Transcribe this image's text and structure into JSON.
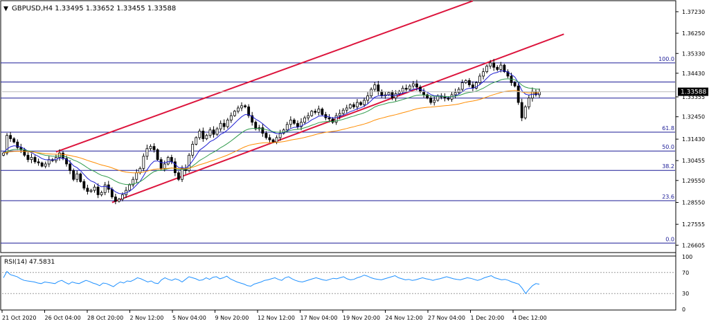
{
  "header": {
    "symbol_line": "GBPUSD,H4  1.33495 1.33652 1.33455 1.33588",
    "collapse_glyph": "▼"
  },
  "colors": {
    "bull_candle": "#ffffff",
    "bear_candle": "#000000",
    "candle_outline": "#000000",
    "ma_fast": "#1e1ed2",
    "ma_mid": "#2e9a4a",
    "ma_slow": "#ff8c00",
    "channel": "#dc143c",
    "fib_line": "#1a1a96",
    "rsi_line": "#1e90ff",
    "rsi_level": "#9a9a9a",
    "price_tag_bg": "#000000",
    "price_tag_fg": "#ffffff"
  },
  "chart_data": [
    {
      "type": "candlestick",
      "symbol": "GBPUSD",
      "timeframe": "H4",
      "ohlc_current": {
        "open": 1.33495,
        "high": 1.33652,
        "low": 1.33455,
        "close": 1.33588
      },
      "last_price_label": "1.33588",
      "ylim": [
        1.263,
        1.377
      ],
      "y_ticks": [
        "1.37230",
        "1.36250",
        "1.35330",
        "1.34430",
        "1.33355",
        "1.32450",
        "1.31430",
        "1.30455",
        "1.29550",
        "1.28550",
        "1.27555",
        "1.26605"
      ],
      "y_tick_values": [
        1.3723,
        1.3625,
        1.3533,
        1.3443,
        1.33355,
        1.3245,
        1.3143,
        1.30455,
        1.2955,
        1.2855,
        1.27555,
        1.26605
      ],
      "x_ticks": [
        "21 Oct 2020",
        "26 Oct 04:00",
        "28 Oct 20:00",
        "2 Nov 12:00",
        "5 Nov 04:00",
        "9 Nov 20:00",
        "12 Nov 12:00",
        "17 Nov 04:00",
        "19 Nov 20:00",
        "24 Nov 12:00",
        "27 Nov 04:00",
        "1 Dec 20:00",
        "4 Dec 12:00"
      ],
      "closes": [
        1.308,
        1.316,
        1.3145,
        1.313,
        1.3105,
        1.3095,
        1.307,
        1.305,
        1.306,
        1.304,
        1.3035,
        1.302,
        1.303,
        1.305,
        1.3045,
        1.306,
        1.308,
        1.3055,
        1.303,
        1.3,
        1.296,
        1.2985,
        1.295,
        1.292,
        1.2905,
        1.291,
        1.2925,
        1.289,
        1.29,
        1.2935,
        1.2915,
        1.288,
        1.286,
        1.287,
        1.289,
        1.291,
        1.2935,
        1.296,
        1.299,
        1.301,
        1.3065,
        1.31,
        1.311,
        1.3095,
        1.305,
        1.301,
        1.303,
        1.306,
        1.304,
        1.299,
        1.296,
        1.301,
        1.3,
        1.307,
        1.312,
        1.315,
        1.318,
        1.3145,
        1.316,
        1.3185,
        1.3165,
        1.319,
        1.3215,
        1.32,
        1.323,
        1.325,
        1.327,
        1.3285,
        1.3295,
        1.329,
        1.325,
        1.322,
        1.319,
        1.3195,
        1.317,
        1.315,
        1.314,
        1.313,
        1.315,
        1.317,
        1.3185,
        1.321,
        1.323,
        1.3215,
        1.32,
        1.322,
        1.324,
        1.325,
        1.327,
        1.3265,
        1.328,
        1.3255,
        1.324,
        1.3235,
        1.322,
        1.325,
        1.326,
        1.3275,
        1.3285,
        1.33,
        1.329,
        1.331,
        1.33,
        1.332,
        1.334,
        1.337,
        1.339,
        1.336,
        1.334,
        1.3345,
        1.3355,
        1.333,
        1.335,
        1.336,
        1.3375,
        1.337,
        1.3385,
        1.3395,
        1.338,
        1.336,
        1.3345,
        1.333,
        1.331,
        1.332,
        1.334,
        1.3335,
        1.333,
        1.3325,
        1.3345,
        1.3355,
        1.337,
        1.34,
        1.341,
        1.339,
        1.3375,
        1.34,
        1.343,
        1.345,
        1.3475,
        1.349,
        1.347,
        1.346,
        1.348,
        1.345,
        1.343,
        1.34,
        1.3385,
        1.331,
        1.324,
        1.329,
        1.333,
        1.336,
        1.3345,
        1.33588
      ],
      "channel": {
        "lower": [
          {
            "bar": 31,
            "price": 1.2855
          },
          {
            "bar": 160,
            "price": 1.3621
          }
        ],
        "upper": [
          {
            "bar": 15,
            "price": 1.3085
          },
          {
            "bar": 134,
            "price": 1.3772
          }
        ]
      },
      "fib_levels": [
        {
          "label": "100.0",
          "price": 1.349
        },
        {
          "label": "",
          "price": 1.3403
        },
        {
          "label": "",
          "price": 1.333
        },
        {
          "label": "61.8",
          "price": 1.3175
        },
        {
          "label": "50.0",
          "price": 1.3089
        },
        {
          "label": "38.2",
          "price": 1.3001
        },
        {
          "label": "23.6",
          "price": 1.2863
        },
        {
          "label": "0.0",
          "price": 1.267
        }
      ]
    },
    {
      "type": "line",
      "indicator_label": "RSI(14) 47.5831",
      "ylim": [
        0,
        100
      ],
      "y_ticks": [
        "100",
        "70",
        "30",
        "0"
      ],
      "y_tick_values": [
        100,
        70,
        30,
        0
      ],
      "levels": [
        70,
        30
      ],
      "values": [
        60,
        72,
        66,
        64,
        62,
        58,
        55,
        54,
        53,
        52,
        50,
        49,
        52,
        51,
        50,
        49,
        53,
        55,
        51,
        48,
        52,
        50,
        49,
        52,
        55,
        53,
        50,
        48,
        45,
        50,
        49,
        46,
        43,
        48,
        52,
        50,
        54,
        53,
        56,
        60,
        58,
        55,
        52,
        54,
        50,
        49,
        56,
        60,
        57,
        55,
        58,
        56,
        52,
        57,
        62,
        60,
        58,
        55,
        56,
        60,
        57,
        61,
        62,
        58,
        60,
        63,
        58,
        55,
        52,
        50,
        48,
        45,
        44,
        48,
        50,
        52,
        55,
        56,
        58,
        60,
        57,
        55,
        60,
        62,
        58,
        55,
        53,
        52,
        54,
        56,
        58,
        60,
        58,
        56,
        55,
        57,
        59,
        58,
        60,
        62,
        58,
        56,
        57,
        60,
        62,
        65,
        63,
        60,
        58,
        57,
        56,
        58,
        60,
        62,
        64,
        60,
        58,
        56,
        57,
        55,
        56,
        58,
        60,
        58,
        57,
        55,
        57,
        58,
        60,
        62,
        60,
        58,
        57,
        56,
        58,
        60,
        59,
        57,
        55,
        57,
        60,
        62,
        64,
        60,
        58,
        56,
        57,
        55,
        52,
        50,
        48,
        40,
        30,
        38,
        45,
        49,
        47.5831
      ]
    }
  ]
}
